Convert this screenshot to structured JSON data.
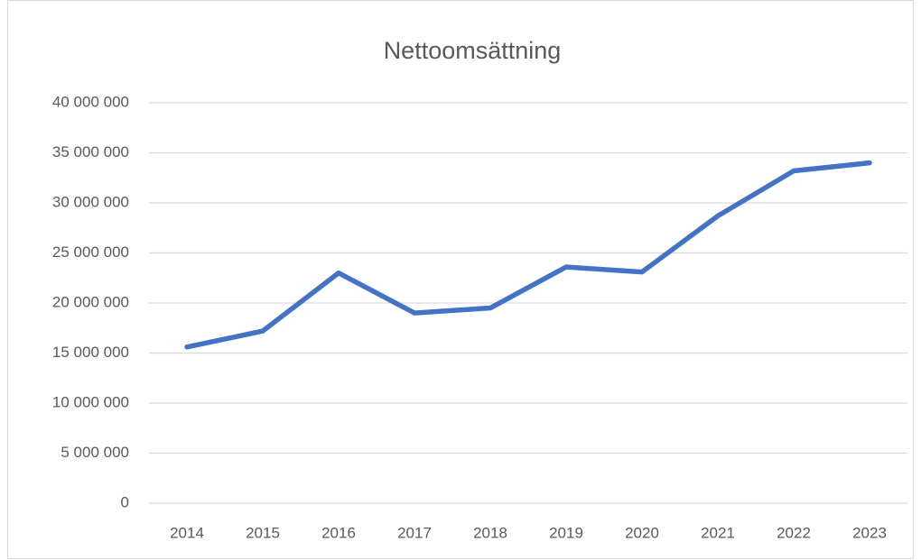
{
  "chart_data": {
    "type": "line",
    "title": "Nettoomsättning",
    "categories": [
      "2014",
      "2015",
      "2016",
      "2017",
      "2018",
      "2019",
      "2020",
      "2021",
      "2022",
      "2023"
    ],
    "series": [
      {
        "name": "Nettoomsättning",
        "color": "#4472c4",
        "values": [
          15600000,
          17200000,
          23000000,
          19000000,
          19500000,
          23600000,
          23100000,
          28700000,
          33200000,
          34000000
        ]
      }
    ],
    "ylim": [
      0,
      40000000
    ],
    "yticks": [
      0,
      {
        "value": 5000000,
        "label": "5 000 000"
      },
      {
        "value": 10000000,
        "label": "10 000 000"
      },
      {
        "value": 15000000,
        "label": "15 000 000"
      },
      {
        "value": 20000000,
        "label": "20 000 000"
      },
      {
        "value": 25000000,
        "label": "25 000 000"
      },
      {
        "value": 30000000,
        "label": "30 000 000"
      },
      {
        "value": 35000000,
        "label": "35 000 000"
      },
      {
        "value": 40000000,
        "label": "40 000 000"
      }
    ],
    "grid": true
  }
}
